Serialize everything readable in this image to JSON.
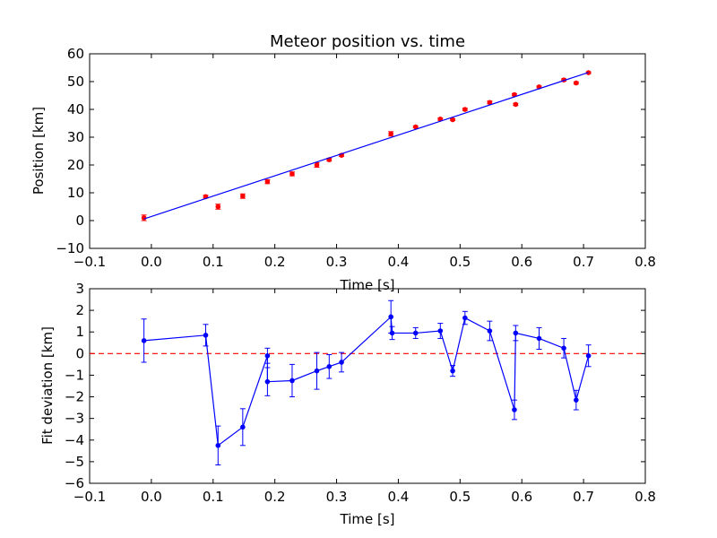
{
  "chart_data": [
    {
      "type": "scatter",
      "title": "Meteor position vs. time",
      "xlabel": "Time [s]",
      "ylabel": "Position [km]",
      "xlim": [
        -0.1,
        0.8
      ],
      "ylim": [
        -10,
        60
      ],
      "xticks": [
        "−0.1",
        "0.0",
        "0.1",
        "0.2",
        "0.3",
        "0.4",
        "0.5",
        "0.6",
        "0.7",
        "0.8"
      ],
      "yticks": [
        "−10",
        "0",
        "10",
        "20",
        "30",
        "40",
        "50",
        "60"
      ],
      "grid": false,
      "series": [
        {
          "color": "#ff0000",
          "marker": "circle",
          "x": [
            -0.012,
            0.088,
            0.108,
            0.148,
            0.188,
            0.228,
            0.268,
            0.288,
            0.308,
            0.388,
            0.428,
            0.468,
            0.488,
            0.508,
            0.548,
            0.588,
            0.59,
            0.628,
            0.668,
            0.688,
            0.708
          ],
          "y": [
            1.0,
            8.6,
            5.0,
            8.8,
            14.0,
            16.8,
            20.0,
            21.9,
            23.5,
            31.2,
            33.7,
            36.5,
            36.3,
            40.0,
            42.5,
            45.3,
            41.8,
            48.1,
            50.6,
            49.5,
            53.2
          ],
          "error": [
            1.0,
            0.5,
            0.9,
            0.8,
            0.7,
            0.7,
            0.8,
            0.5,
            0.4,
            0.8,
            0.3,
            0.4,
            0.3,
            0.4,
            0.5,
            0.4,
            0.4,
            0.3,
            0.4,
            0.4,
            0.3
          ]
        },
        {
          "color": "#0000ff",
          "style": "line",
          "x": [
            -0.012,
            0.708
          ],
          "y": [
            0.6,
            53.3
          ]
        }
      ]
    },
    {
      "type": "line",
      "xlabel": "Time [s]",
      "ylabel": "Fit deviation [km]",
      "xlim": [
        -0.1,
        0.8
      ],
      "ylim": [
        -6,
        3
      ],
      "xticks": [
        "−0.1",
        "0.0",
        "0.1",
        "0.2",
        "0.3",
        "0.4",
        "0.5",
        "0.6",
        "0.7",
        "0.8"
      ],
      "yticks": [
        "−6",
        "−5",
        "−4",
        "−3",
        "−2",
        "−1",
        "0",
        "1",
        "2",
        "3"
      ],
      "grid": false,
      "reference_line": {
        "y": 0,
        "color": "#ff0000",
        "style": "dashed"
      },
      "series": [
        {
          "color": "#0000ff",
          "marker": "circle",
          "x": [
            -0.012,
            0.088,
            0.108,
            0.148,
            0.188,
            0.188,
            0.228,
            0.268,
            0.288,
            0.308,
            0.388,
            0.39,
            0.428,
            0.468,
            0.488,
            0.508,
            0.548,
            0.588,
            0.59,
            0.628,
            0.668,
            0.688,
            0.708
          ],
          "y": [
            0.6,
            0.85,
            -4.25,
            -3.4,
            -0.1,
            -1.3,
            -1.25,
            -0.8,
            -0.6,
            -0.4,
            1.7,
            0.95,
            0.95,
            1.05,
            -0.8,
            1.65,
            1.05,
            -2.6,
            0.95,
            0.7,
            0.25,
            -2.15,
            -0.1
          ],
          "error": [
            1.0,
            0.5,
            0.9,
            0.85,
            0.35,
            0.65,
            0.75,
            0.85,
            0.55,
            0.45,
            0.75,
            0.3,
            0.25,
            0.35,
            0.25,
            0.3,
            0.45,
            0.45,
            0.35,
            0.5,
            0.45,
            0.45,
            0.5
          ]
        }
      ]
    }
  ]
}
